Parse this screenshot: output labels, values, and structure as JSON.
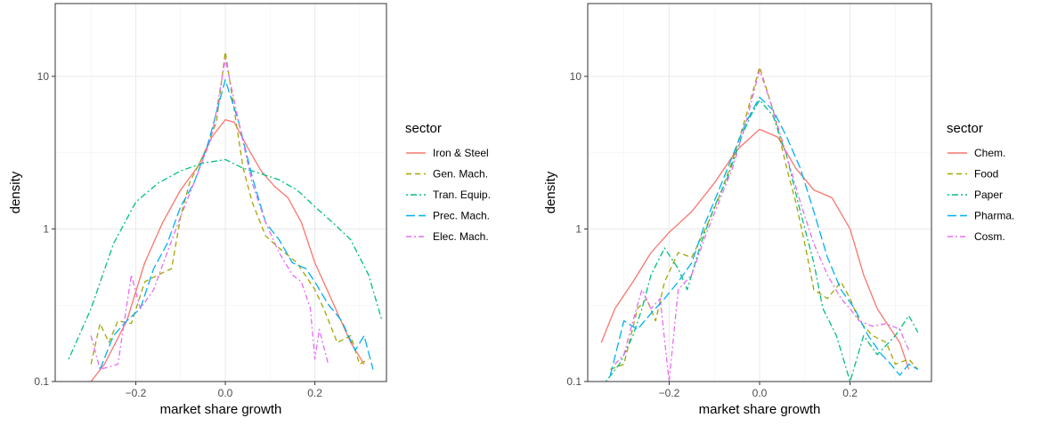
{
  "chart_data": [
    {
      "type": "line",
      "title": "",
      "xlabel": "market share growth",
      "ylabel": "density",
      "y_scale": "log",
      "xlim": [
        -0.38,
        0.36
      ],
      "ylim": [
        0.1,
        30
      ],
      "x_ticks": [
        -0.2,
        0.0,
        0.2
      ],
      "x_tick_labels": [
        "−0.2",
        "0.0",
        "0.2"
      ],
      "y_ticks": [
        0.1,
        1,
        10
      ],
      "y_tick_labels": [
        "0.1",
        "1",
        "10"
      ],
      "grid": true,
      "legend_title": "sector",
      "legend_position": "right",
      "series": [
        {
          "name": "Iron & Steel",
          "color": "#F8766D",
          "dash": "solid",
          "points": [
            [
              -0.3,
              0.1
            ],
            [
              -0.27,
              0.13
            ],
            [
              -0.22,
              0.25
            ],
            [
              -0.18,
              0.6
            ],
            [
              -0.14,
              1.1
            ],
            [
              -0.1,
              1.8
            ],
            [
              -0.06,
              2.6
            ],
            [
              -0.03,
              4
            ],
            [
              0,
              5.2
            ],
            [
              0.02,
              5
            ],
            [
              0.05,
              3.4
            ],
            [
              0.08,
              2.4
            ],
            [
              0.11,
              1.9
            ],
            [
              0.14,
              1.6
            ],
            [
              0.17,
              1.1
            ],
            [
              0.2,
              0.6
            ],
            [
              0.24,
              0.33
            ],
            [
              0.28,
              0.18
            ],
            [
              0.31,
              0.13
            ]
          ]
        },
        {
          "name": "Gen. Mach.",
          "color": "#A3A500",
          "dash": "dashed",
          "points": [
            [
              -0.3,
              0.13
            ],
            [
              -0.28,
              0.24
            ],
            [
              -0.26,
              0.18
            ],
            [
              -0.24,
              0.25
            ],
            [
              -0.21,
              0.24
            ],
            [
              -0.18,
              0.45
            ],
            [
              -0.15,
              0.5
            ],
            [
              -0.12,
              0.55
            ],
            [
              -0.1,
              1.2
            ],
            [
              -0.08,
              2
            ],
            [
              -0.05,
              3
            ],
            [
              -0.02,
              5
            ],
            [
              0,
              14.5
            ],
            [
              0.02,
              6
            ],
            [
              0.04,
              2.5
            ],
            [
              0.06,
              1.5
            ],
            [
              0.09,
              0.9
            ],
            [
              0.12,
              0.75
            ],
            [
              0.16,
              0.6
            ],
            [
              0.2,
              0.4
            ],
            [
              0.22,
              0.3
            ],
            [
              0.25,
              0.18
            ],
            [
              0.28,
              0.2
            ],
            [
              0.3,
              0.13
            ],
            [
              0.32,
              0.14
            ]
          ]
        },
        {
          "name": "Tran. Equip.",
          "color": "#00BF7D",
          "dash": "dotdash",
          "points": [
            [
              -0.35,
              0.14
            ],
            [
              -0.3,
              0.3
            ],
            [
              -0.25,
              0.8
            ],
            [
              -0.2,
              1.5
            ],
            [
              -0.15,
              2
            ],
            [
              -0.1,
              2.4
            ],
            [
              -0.05,
              2.7
            ],
            [
              0,
              2.85
            ],
            [
              0.04,
              2.5
            ],
            [
              0.08,
              2.3
            ],
            [
              0.12,
              2.1
            ],
            [
              0.16,
              1.8
            ],
            [
              0.2,
              1.4
            ],
            [
              0.24,
              1.1
            ],
            [
              0.28,
              0.85
            ],
            [
              0.32,
              0.5
            ],
            [
              0.35,
              0.25
            ]
          ]
        },
        {
          "name": "Prec. Mach.",
          "color": "#00B0F6",
          "dash": "longdash",
          "points": [
            [
              -0.28,
              0.12
            ],
            [
              -0.25,
              0.2
            ],
            [
              -0.22,
              0.25
            ],
            [
              -0.19,
              0.3
            ],
            [
              -0.16,
              0.55
            ],
            [
              -0.13,
              0.8
            ],
            [
              -0.1,
              1.4
            ],
            [
              -0.07,
              2
            ],
            [
              -0.04,
              3.5
            ],
            [
              0,
              9.5
            ],
            [
              0.03,
              5
            ],
            [
              0.06,
              2.2
            ],
            [
              0.09,
              1.1
            ],
            [
              0.12,
              0.85
            ],
            [
              0.15,
              0.6
            ],
            [
              0.18,
              0.55
            ],
            [
              0.2,
              0.45
            ],
            [
              0.23,
              0.32
            ],
            [
              0.26,
              0.25
            ],
            [
              0.29,
              0.16
            ],
            [
              0.31,
              0.2
            ],
            [
              0.33,
              0.12
            ]
          ]
        },
        {
          "name": "Elec. Mach.",
          "color": "#E76BF3",
          "dash": "twodash",
          "points": [
            [
              -0.3,
              0.2
            ],
            [
              -0.28,
              0.12
            ],
            [
              -0.24,
              0.13
            ],
            [
              -0.21,
              0.5
            ],
            [
              -0.19,
              0.3
            ],
            [
              -0.16,
              0.4
            ],
            [
              -0.13,
              0.7
            ],
            [
              -0.1,
              1.2
            ],
            [
              -0.07,
              2
            ],
            [
              -0.03,
              4
            ],
            [
              0,
              13
            ],
            [
              0.03,
              5
            ],
            [
              0.06,
              2
            ],
            [
              0.09,
              1.1
            ],
            [
              0.12,
              0.7
            ],
            [
              0.15,
              0.5
            ],
            [
              0.17,
              0.45
            ],
            [
              0.19,
              0.3
            ],
            [
              0.2,
              0.14
            ],
            [
              0.21,
              0.22
            ],
            [
              0.23,
              0.13
            ]
          ]
        }
      ]
    },
    {
      "type": "line",
      "title": "",
      "xlabel": "market share growth",
      "ylabel": "density",
      "y_scale": "log",
      "xlim": [
        -0.38,
        0.38
      ],
      "ylim": [
        0.1,
        30
      ],
      "x_ticks": [
        -0.2,
        0.0,
        0.2
      ],
      "x_tick_labels": [
        "−0.2",
        "0.0",
        "0.2"
      ],
      "y_ticks": [
        0.1,
        1,
        10
      ],
      "y_tick_labels": [
        "0.1",
        "1",
        "10"
      ],
      "grid": true,
      "legend_title": "sector",
      "legend_position": "right",
      "series": [
        {
          "name": "Chem.",
          "color": "#F8766D",
          "dash": "solid",
          "points": [
            [
              -0.35,
              0.18
            ],
            [
              -0.32,
              0.3
            ],
            [
              -0.28,
              0.45
            ],
            [
              -0.24,
              0.7
            ],
            [
              -0.2,
              0.95
            ],
            [
              -0.15,
              1.3
            ],
            [
              -0.1,
              2
            ],
            [
              -0.05,
              3.3
            ],
            [
              0,
              4.5
            ],
            [
              0.04,
              4
            ],
            [
              0.08,
              2.5
            ],
            [
              0.12,
              1.8
            ],
            [
              0.16,
              1.6
            ],
            [
              0.2,
              1
            ],
            [
              0.23,
              0.5
            ],
            [
              0.26,
              0.3
            ],
            [
              0.29,
              0.22
            ],
            [
              0.31,
              0.18
            ],
            [
              0.33,
              0.12
            ]
          ]
        },
        {
          "name": "Food",
          "color": "#A3A500",
          "dash": "dashed",
          "points": [
            [
              -0.33,
              0.12
            ],
            [
              -0.3,
              0.13
            ],
            [
              -0.27,
              0.3
            ],
            [
              -0.25,
              0.35
            ],
            [
              -0.23,
              0.25
            ],
            [
              -0.21,
              0.45
            ],
            [
              -0.18,
              0.7
            ],
            [
              -0.15,
              0.65
            ],
            [
              -0.12,
              1
            ],
            [
              -0.09,
              1.6
            ],
            [
              -0.06,
              2.8
            ],
            [
              -0.03,
              5.5
            ],
            [
              0,
              11.5
            ],
            [
              0.03,
              6
            ],
            [
              0.06,
              2.5
            ],
            [
              0.08,
              1.5
            ],
            [
              0.1,
              0.8
            ],
            [
              0.12,
              0.4
            ],
            [
              0.15,
              0.35
            ],
            [
              0.18,
              0.45
            ],
            [
              0.2,
              0.35
            ],
            [
              0.22,
              0.25
            ],
            [
              0.25,
              0.2
            ],
            [
              0.28,
              0.18
            ],
            [
              0.3,
              0.13
            ],
            [
              0.33,
              0.14
            ],
            [
              0.35,
              0.12
            ]
          ]
        },
        {
          "name": "Paper",
          "color": "#00BF7D",
          "dash": "dotdash",
          "points": [
            [
              -0.34,
              0.1
            ],
            [
              -0.31,
              0.13
            ],
            [
              -0.28,
              0.2
            ],
            [
              -0.26,
              0.3
            ],
            [
              -0.24,
              0.5
            ],
            [
              -0.21,
              0.75
            ],
            [
              -0.18,
              0.55
            ],
            [
              -0.16,
              0.4
            ],
            [
              -0.13,
              0.8
            ],
            [
              -0.1,
              1.4
            ],
            [
              -0.07,
              2.2
            ],
            [
              -0.04,
              4
            ],
            [
              -0.02,
              5.5
            ],
            [
              0,
              7
            ],
            [
              0.03,
              5.5
            ],
            [
              0.06,
              3
            ],
            [
              0.09,
              1.3
            ],
            [
              0.12,
              0.6
            ],
            [
              0.14,
              0.3
            ],
            [
              0.17,
              0.2
            ],
            [
              0.2,
              0.1
            ],
            [
              0.23,
              0.2
            ],
            [
              0.26,
              0.15
            ],
            [
              0.3,
              0.2
            ],
            [
              0.33,
              0.27
            ],
            [
              0.35,
              0.21
            ]
          ]
        },
        {
          "name": "Pharma.",
          "color": "#00B0F6",
          "dash": "longdash",
          "points": [
            [
              -0.33,
              0.11
            ],
            [
              -0.3,
              0.25
            ],
            [
              -0.27,
              0.22
            ],
            [
              -0.24,
              0.28
            ],
            [
              -0.21,
              0.35
            ],
            [
              -0.18,
              0.45
            ],
            [
              -0.15,
              0.6
            ],
            [
              -0.12,
              1.1
            ],
            [
              -0.09,
              1.8
            ],
            [
              -0.06,
              3
            ],
            [
              -0.03,
              5
            ],
            [
              0,
              7.3
            ],
            [
              0.03,
              6
            ],
            [
              0.06,
              4
            ],
            [
              0.09,
              2.5
            ],
            [
              0.12,
              1.3
            ],
            [
              0.15,
              0.65
            ],
            [
              0.18,
              0.4
            ],
            [
              0.21,
              0.3
            ],
            [
              0.24,
              0.2
            ],
            [
              0.27,
              0.15
            ],
            [
              0.29,
              0.13
            ],
            [
              0.31,
              0.11
            ],
            [
              0.33,
              0.13
            ],
            [
              0.35,
              0.12
            ]
          ]
        },
        {
          "name": "Cosm.",
          "color": "#E76BF3",
          "dash": "twodash",
          "points": [
            [
              -0.32,
              0.13
            ],
            [
              -0.3,
              0.15
            ],
            [
              -0.28,
              0.25
            ],
            [
              -0.26,
              0.4
            ],
            [
              -0.24,
              0.3
            ],
            [
              -0.22,
              0.35
            ],
            [
              -0.2,
              0.1
            ],
            [
              -0.18,
              0.4
            ],
            [
              -0.15,
              0.5
            ],
            [
              -0.12,
              0.9
            ],
            [
              -0.09,
              1.5
            ],
            [
              -0.06,
              2.5
            ],
            [
              -0.03,
              5
            ],
            [
              0,
              11
            ],
            [
              0.03,
              6
            ],
            [
              0.06,
              3
            ],
            [
              0.09,
              1.5
            ],
            [
              0.12,
              0.8
            ],
            [
              0.15,
              0.5
            ],
            [
              0.18,
              0.35
            ],
            [
              0.2,
              0.3
            ],
            [
              0.22,
              0.25
            ],
            [
              0.25,
              0.23
            ],
            [
              0.28,
              0.24
            ],
            [
              0.31,
              0.22
            ],
            [
              0.33,
              0.16
            ]
          ]
        }
      ]
    }
  ]
}
